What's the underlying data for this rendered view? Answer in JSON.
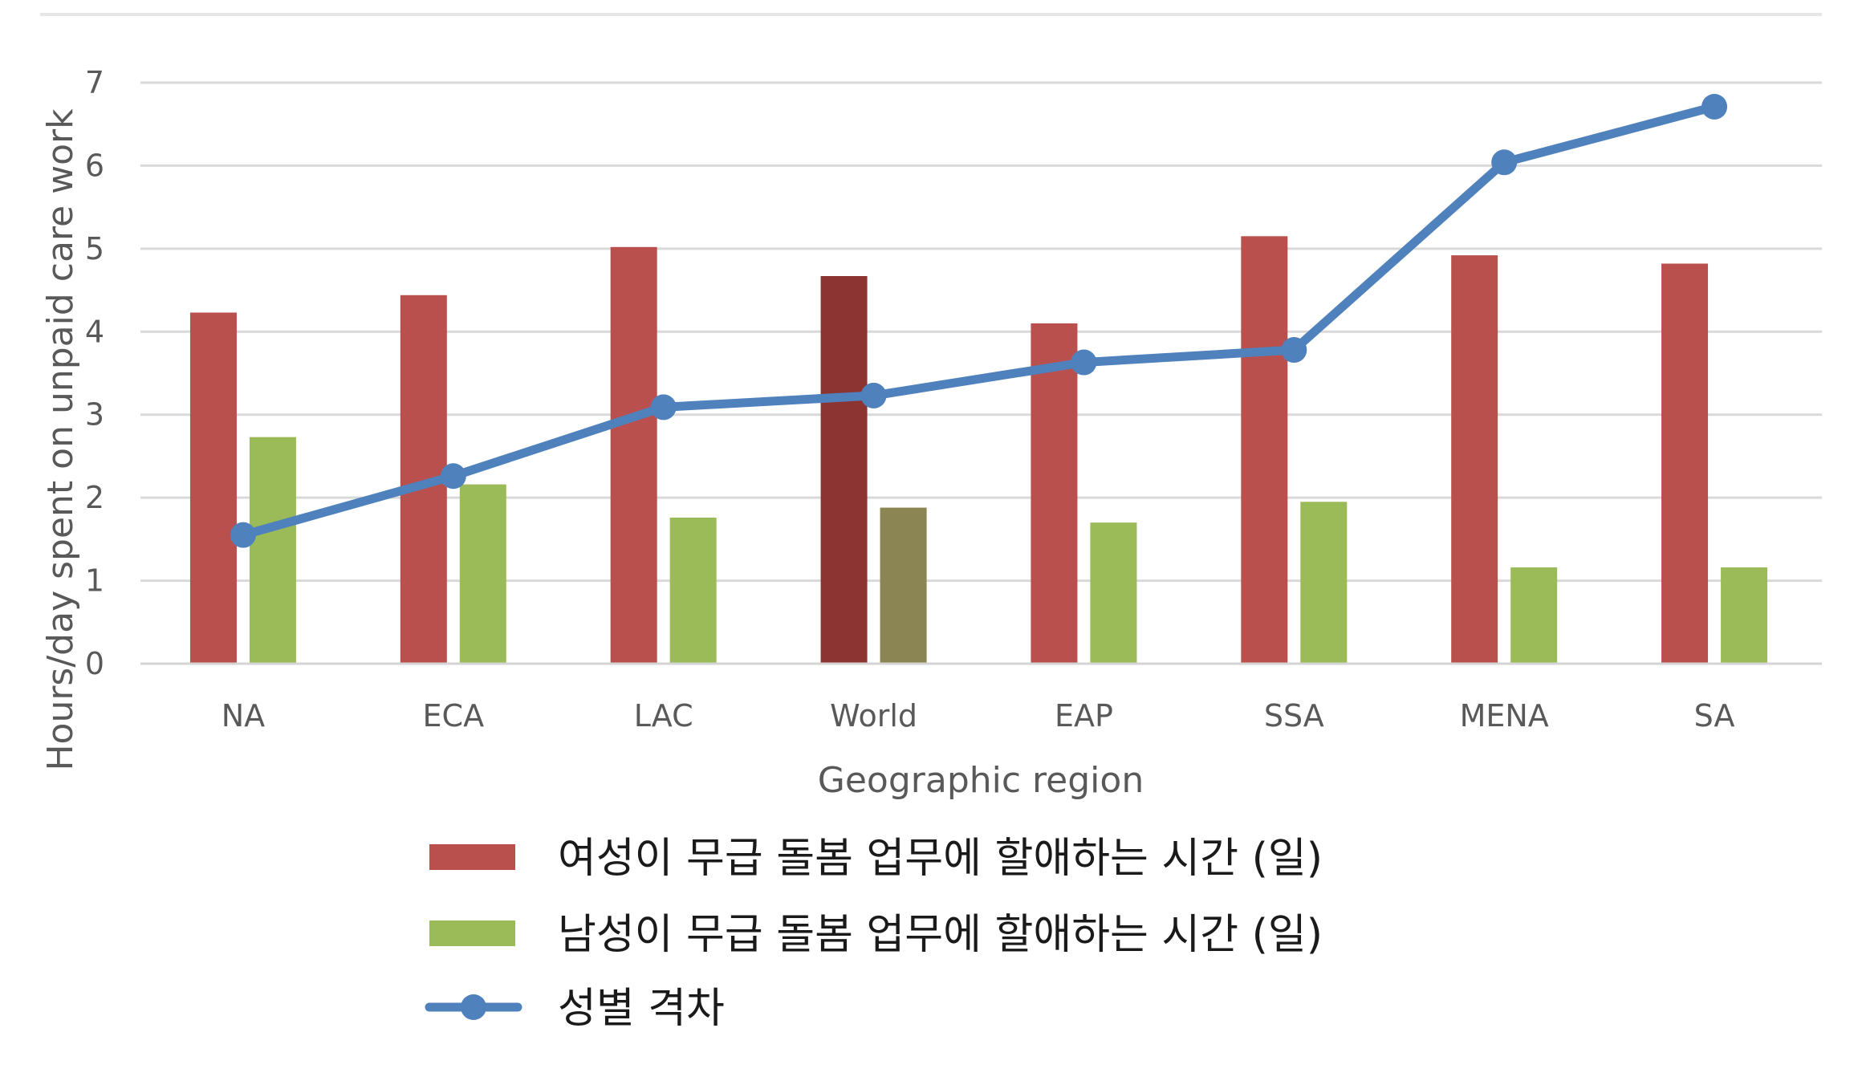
{
  "chart_data": {
    "type": "bar",
    "categories": [
      "NA",
      "ECA",
      "LAC",
      "World",
      "EAP",
      "SSA",
      "MENA",
      "SA"
    ],
    "highlight_category": "World",
    "series": [
      {
        "name": "여성이 무급 돌봄 업무에 할애하는 시간 (일)",
        "kind": "bar",
        "color": "#b9504d",
        "highlight_color": "#8b3431",
        "values": [
          4.23,
          4.44,
          5.02,
          4.67,
          4.1,
          5.15,
          4.92,
          4.82
        ]
      },
      {
        "name": "남성이 무급 돌봄 업무에  할애하는 시간 (일)",
        "kind": "bar",
        "color": "#9bbb59",
        "highlight_color": "#8a8552",
        "values": [
          2.73,
          2.16,
          1.76,
          1.88,
          1.7,
          1.95,
          1.16,
          1.16
        ]
      },
      {
        "name": "성별 격차",
        "kind": "line",
        "color": "#4f81bd",
        "values": [
          1.55,
          2.26,
          3.09,
          3.23,
          3.63,
          3.78,
          6.04,
          6.71
        ]
      }
    ],
    "xlabel": "Geographic region",
    "ylabel": "Hours/day spent on unpaid care work",
    "ylim": [
      0,
      7
    ],
    "yticks": [
      0,
      1,
      2,
      3,
      4,
      5,
      6,
      7
    ],
    "grid": true,
    "legend_position": "bottom"
  }
}
